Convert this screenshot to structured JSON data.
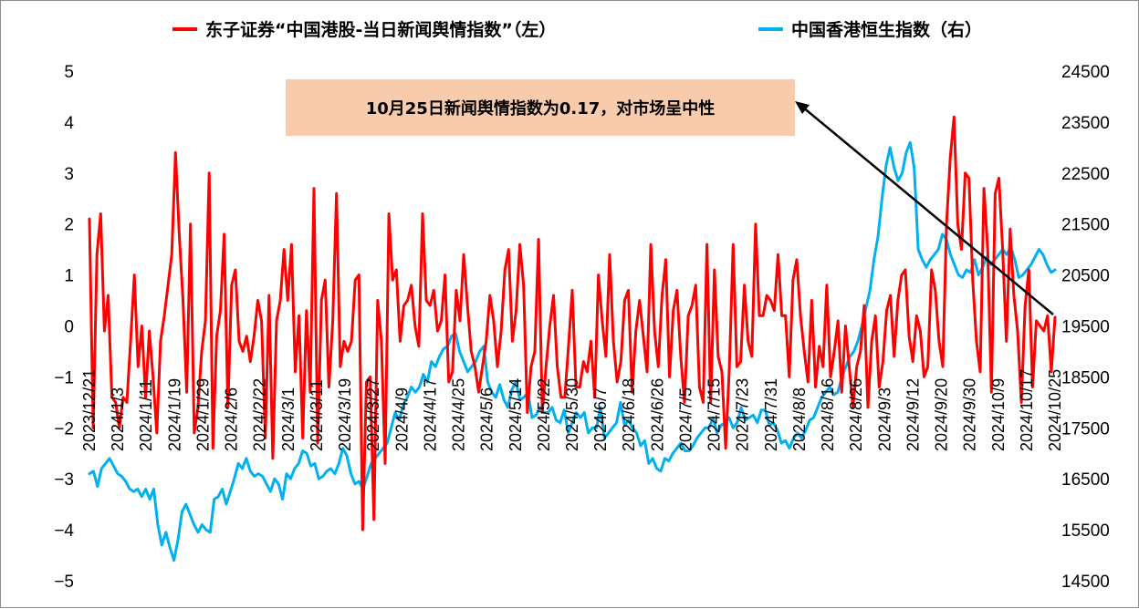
{
  "chart_data": {
    "type": "line",
    "title": "",
    "legend": {
      "placement": "top"
    },
    "series": [
      {
        "name": "东子证券“中国港股-当日新闻舆情指数”（左）",
        "axis": "left",
        "color": "#ff0000",
        "start_date": "2023/12/21",
        "end_date": "2024/10/25",
        "values": [
          2.1,
          -2.0,
          1.4,
          2.2,
          -0.1,
          0.6,
          -1.4,
          -1.5,
          -2.0,
          -1.4,
          -1.5,
          -0.3,
          1.0,
          -0.8,
          0.0,
          -1.4,
          -0.1,
          -1.0,
          -2.1,
          -0.3,
          0.2,
          0.8,
          1.4,
          3.4,
          1.8,
          0.5,
          -1.3,
          2.0,
          -2.1,
          -1.6,
          -0.5,
          0.1,
          3.0,
          -2.4,
          -0.2,
          0.3,
          1.8,
          -1.6,
          0.8,
          1.1,
          -0.3,
          -0.5,
          -0.2,
          -0.7,
          -0.2,
          0.5,
          0.1,
          -2.2,
          0.6,
          -2.6,
          0.1,
          0.5,
          1.5,
          0.5,
          1.6,
          -0.9,
          0.2,
          -2.2,
          0.3,
          -1.3,
          2.7,
          -2.3,
          0.5,
          0.9,
          -1.2,
          0.1,
          2.6,
          -0.8,
          -0.3,
          -0.5,
          -0.3,
          0.9,
          1.0,
          -4.0,
          -1.1,
          -1.0,
          -3.8,
          0.5,
          -0.3,
          -2.7,
          2.2,
          0.9,
          1.1,
          -0.3,
          0.4,
          0.5,
          0.8,
          0.0,
          -0.4,
          2.2,
          0.5,
          0.4,
          0.7,
          -0.1,
          0.1,
          1.0,
          -1.1,
          -0.9,
          0.7,
          0.1,
          1.4,
          0.4,
          -0.5,
          -0.8,
          -1.3,
          -0.8,
          -0.3,
          0.6,
          0.1,
          -0.8,
          -0.1,
          1.1,
          1.5,
          -0.3,
          0.3,
          1.6,
          0.8,
          -1.7,
          -0.8,
          -0.5,
          1.7,
          -1.7,
          -0.8,
          0.0,
          0.6,
          -0.8,
          -1.4,
          -1.4,
          -0.4,
          0.7,
          -1.2,
          -1.2,
          -0.7,
          -0.9,
          -0.3,
          -1.4,
          1.0,
          0.1,
          -0.6,
          1.4,
          -0.3,
          -1.1,
          -0.7,
          0.5,
          0.7,
          -1.3,
          -0.1,
          0.5,
          -0.2,
          -0.9,
          1.6,
          -0.1,
          -0.8,
          0.6,
          1.3,
          -1.0,
          0.3,
          0.7,
          -0.6,
          -1.5,
          0.2,
          0.4,
          0.8,
          -1.2,
          -1.5,
          1.6,
          -1.5,
          1.1,
          -0.6,
          -0.9,
          -2.4,
          -0.8,
          1.6,
          -0.8,
          -0.7,
          0.8,
          -0.3,
          -0.6,
          2.0,
          0.2,
          0.2,
          0.6,
          0.5,
          0.3,
          1.4,
          0.2,
          0.2,
          -1.0,
          0.9,
          1.3,
          0.2,
          -0.5,
          -1.1,
          0.5,
          -1.2,
          -0.4,
          -0.8,
          0.8,
          -1.0,
          -0.5,
          0.1,
          -1.3,
          0.0,
          -0.8,
          -1.6,
          -0.8,
          -0.5,
          0.4,
          -1.6,
          -0.3,
          0.2,
          -1.2,
          -0.7,
          0.3,
          0.6,
          -0.6,
          0.5,
          1.0,
          1.1,
          -0.2,
          -0.7,
          0.2,
          -0.1,
          -1.0,
          -0.8,
          1.1,
          0.7,
          -0.3,
          -0.8,
          2.0,
          3.3,
          4.1,
          2.0,
          1.5,
          3.0,
          2.9,
          0.9,
          -0.3,
          -0.9,
          2.7,
          1.5,
          -1.3,
          2.6,
          2.9,
          1.5,
          -0.3,
          1.9,
          0.6,
          -0.1,
          -1.5,
          0.4,
          1.1,
          -1.2,
          0.1,
          0.0,
          -0.1,
          0.2,
          -0.9,
          0.17
        ]
      },
      {
        "name": "中国香港恒生指数（右）",
        "axis": "right",
        "color": "#00b0f0",
        "start_date": "2023/12/21",
        "end_date": "2024/10/25",
        "values": [
          16600,
          16650,
          16350,
          16700,
          16800,
          16900,
          16750,
          16600,
          16550,
          16450,
          16300,
          16250,
          16300,
          16150,
          16300,
          16100,
          16300,
          15600,
          15200,
          15450,
          15150,
          14900,
          15300,
          15850,
          16000,
          15800,
          15600,
          15450,
          15600,
          15500,
          15450,
          16100,
          16150,
          16300,
          16000,
          16250,
          16500,
          16800,
          16700,
          16900,
          16650,
          16550,
          16600,
          16550,
          16400,
          16250,
          16500,
          16400,
          16100,
          16600,
          16500,
          16700,
          16800,
          17050,
          17000,
          16750,
          16800,
          16500,
          16550,
          16650,
          16700,
          16600,
          16800,
          17100,
          16950,
          16600,
          16400,
          16450,
          16300,
          16550,
          16800,
          16900,
          17000,
          17100,
          17200,
          17500,
          17800,
          17650,
          17950,
          18100,
          18300,
          18200,
          18300,
          18550,
          18400,
          18800,
          18700,
          18900,
          19050,
          19100,
          19300,
          19350,
          19000,
          18800,
          18600,
          18700,
          18800,
          19000,
          19100,
          18400,
          18200,
          18100,
          18350,
          18050,
          17900,
          18250,
          18400,
          18050,
          18100,
          18200,
          17700,
          17750,
          17900,
          17800,
          17800,
          17900,
          17650,
          17600,
          17850,
          17400,
          17600,
          17800,
          17700,
          17800,
          17400,
          17500,
          17500,
          17900,
          17300,
          17400,
          17500,
          17600,
          18000,
          17550,
          17650,
          17500,
          17400,
          17150,
          17250,
          16800,
          16900,
          16700,
          16650,
          16900,
          16850,
          17000,
          17100,
          17200,
          17050,
          17050,
          17150,
          17300,
          17400,
          17500,
          17500,
          17700,
          17400,
          17550,
          17600,
          17700,
          17500,
          17600,
          17900,
          17650,
          17700,
          17750,
          17600,
          17850,
          17850,
          17550,
          17600,
          17450,
          17200,
          17250,
          17100,
          17300,
          17400,
          17300,
          17450,
          17650,
          17700,
          17900,
          18100,
          18200,
          18300,
          18150,
          18200,
          18500,
          18700,
          18900,
          19000,
          19200,
          19500,
          19850,
          20200,
          20800,
          21250,
          22000,
          22650,
          23000,
          22600,
          22350,
          22500,
          22900,
          23100,
          22600,
          21000,
          20800,
          20650,
          20800,
          20900,
          21000,
          21300,
          21200,
          20900,
          20700,
          20500,
          20450,
          20600,
          20550,
          20800,
          20500,
          20650,
          20850,
          20700,
          20800,
          20900,
          21000,
          20900,
          21050,
          20800,
          20450,
          20500,
          20600,
          20700,
          20850,
          21000,
          20900,
          20700,
          20550,
          20600
        ]
      }
    ],
    "y_left": {
      "ylim": [
        -5,
        5
      ],
      "ticks": [
        "−5",
        "−4",
        "−3",
        "−2",
        "−1",
        "0",
        "1",
        "2",
        "3",
        "4",
        "5"
      ]
    },
    "y_right": {
      "ylim": [
        14500,
        24500
      ],
      "ticks": [
        "14500",
        "15500",
        "16500",
        "17500",
        "18500",
        "19500",
        "20500",
        "21500",
        "22500",
        "23500",
        "24500"
      ]
    },
    "x_ticks": [
      "2023/12/21",
      "2024/1/3",
      "2024/1/11",
      "2024/1/19",
      "2024/1/29",
      "2024/2/6",
      "2024/2/22",
      "2024/3/1",
      "2024/3/11",
      "2024/3/19",
      "2024/3/27",
      "2024/4/9",
      "2024/4/17",
      "2024/4/25",
      "2024/5/6",
      "2024/5/14",
      "2024/5/22",
      "2024/5/30",
      "2024/6/7",
      "2024/6/18",
      "2024/6/26",
      "2024/7/5",
      "2024/7/15",
      "2024/7/23",
      "2024/7/31",
      "2024/8/8",
      "2024/8/16",
      "2024/8/26",
      "2024/9/3",
      "2024/9/12",
      "2024/9/20",
      "2024/9/30",
      "2024/10/9",
      "2024/10/17",
      "2024/10/25"
    ],
    "grid": false,
    "annotations": [
      {
        "text": "10月25日新闻舆情指数为0.17，对市场呈中性",
        "background": "#f8cbad"
      }
    ]
  }
}
